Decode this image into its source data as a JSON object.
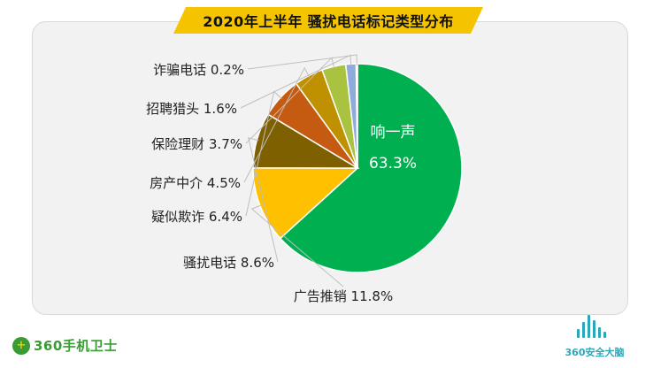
{
  "title": "2020年上半年 骚扰电话标记类型分布",
  "chart_data": {
    "type": "pie",
    "title": "2020年上半年 骚扰电话标记类型分布",
    "unit": "%",
    "slices": [
      {
        "label": "响一声",
        "value": 63.3,
        "display": "63.3%",
        "color": "#00b050"
      },
      {
        "label": "广告推销",
        "value": 11.8,
        "display": "11.8%",
        "color": "#ffc000"
      },
      {
        "label": "骚扰电话",
        "value": 8.6,
        "display": "8.6%",
        "color": "#7f6000"
      },
      {
        "label": "疑似欺诈",
        "value": 6.4,
        "display": "6.4%",
        "color": "#c55a11"
      },
      {
        "label": "房产中介",
        "value": 4.5,
        "display": "4.5%",
        "color": "#bf9000"
      },
      {
        "label": "保险理财",
        "value": 3.7,
        "display": "3.7%",
        "color": "#a9c23f"
      },
      {
        "label": "招聘猎头",
        "value": 1.6,
        "display": "1.6%",
        "color": "#8faadc"
      },
      {
        "label": "诈骗电话",
        "value": 0.2,
        "display": "0.2%",
        "color": "#e7e6e6"
      }
    ]
  },
  "brand_left": {
    "logo_glyph": "+",
    "text": "360手机卫士"
  },
  "brand_right": {
    "text": "360安全大脑"
  }
}
